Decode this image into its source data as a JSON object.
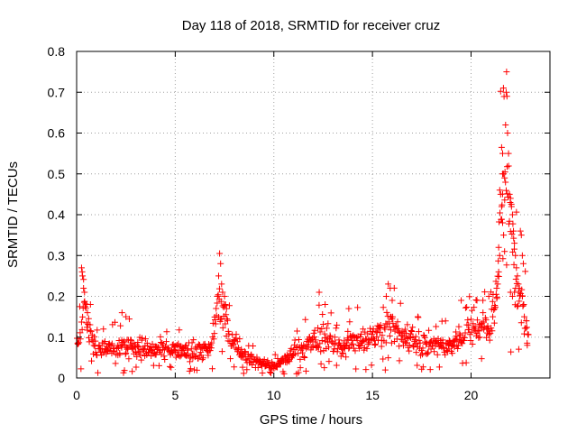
{
  "chart_data": {
    "type": "scatter",
    "title": "Day 118 of 2018, SRMTID for receiver cruz",
    "xlabel": "GPS time / hours",
    "ylabel": "SRMTID / TECUs",
    "xlim": [
      0,
      24
    ],
    "ylim": [
      0,
      0.8
    ],
    "xticks": [
      0,
      5,
      10,
      15,
      20
    ],
    "xtick_labels": [
      "0",
      "5",
      "10",
      "15",
      "20"
    ],
    "yticks": [
      0,
      0.1,
      0.2,
      0.3,
      0.4,
      0.5,
      0.6,
      0.7,
      0.8
    ],
    "ytick_labels": [
      "0",
      "0.1",
      "0.2",
      "0.3",
      "0.4",
      "0.5",
      "0.6",
      "0.7",
      "0.8"
    ],
    "grid": true,
    "marker": "plus",
    "series": [
      {
        "name": "SRMTID",
        "color": "#ff0000",
        "x_start": 0,
        "x_end": 22.9,
        "x_step": 0.025,
        "envelope": [
          [
            0,
            0.08
          ],
          [
            0.2,
            0.12
          ],
          [
            0.4,
            0.2
          ],
          [
            0.6,
            0.12
          ],
          [
            1,
            0.07
          ],
          [
            2,
            0.08
          ],
          [
            3,
            0.075
          ],
          [
            4,
            0.07
          ],
          [
            5,
            0.07
          ],
          [
            6,
            0.06
          ],
          [
            6.8,
            0.07
          ],
          [
            7.2,
            0.2
          ],
          [
            7.5,
            0.15
          ],
          [
            8,
            0.08
          ],
          [
            9,
            0.04
          ],
          [
            10,
            0.03
          ],
          [
            10.5,
            0.04
          ],
          [
            11,
            0.06
          ],
          [
            12,
            0.09
          ],
          [
            12.5,
            0.1
          ],
          [
            13,
            0.09
          ],
          [
            13.5,
            0.07
          ],
          [
            14,
            0.09
          ],
          [
            15,
            0.1
          ],
          [
            15.8,
            0.13
          ],
          [
            16.5,
            0.1
          ],
          [
            17,
            0.09
          ],
          [
            18,
            0.08
          ],
          [
            19,
            0.08
          ],
          [
            19.5,
            0.1
          ],
          [
            20,
            0.12
          ],
          [
            20.5,
            0.13
          ],
          [
            21,
            0.12
          ],
          [
            21.3,
            0.2
          ],
          [
            21.5,
            0.4
          ],
          [
            21.7,
            0.5
          ],
          [
            21.9,
            0.4
          ],
          [
            22.1,
            0.32
          ],
          [
            22.3,
            0.22
          ],
          [
            22.5,
            0.2
          ],
          [
            22.9,
            0.1
          ]
        ],
        "spread": 0.45,
        "highlights": [
          [
            0.25,
            0.27
          ],
          [
            0.28,
            0.26
          ],
          [
            0.3,
            0.25
          ],
          [
            0.35,
            0.22
          ],
          [
            0.4,
            0.21
          ],
          [
            0.5,
            0.18
          ],
          [
            0.55,
            0.16
          ],
          [
            0.7,
            0.18
          ],
          [
            2.3,
            0.16
          ],
          [
            2.5,
            0.15
          ],
          [
            7.25,
            0.305
          ],
          [
            7.3,
            0.28
          ],
          [
            7.2,
            0.25
          ],
          [
            7.35,
            0.23
          ],
          [
            7.4,
            0.21
          ],
          [
            7.15,
            0.2
          ],
          [
            7.5,
            0.2
          ],
          [
            7.6,
            0.17
          ],
          [
            12.3,
            0.21
          ],
          [
            12.6,
            0.18
          ],
          [
            13.8,
            0.17
          ],
          [
            15.8,
            0.23
          ],
          [
            15.9,
            0.22
          ],
          [
            15.7,
            0.2
          ],
          [
            16.0,
            0.19
          ],
          [
            17.3,
            0.15
          ],
          [
            19.5,
            0.19
          ],
          [
            20.3,
            0.19
          ],
          [
            20.6,
            0.19
          ],
          [
            20.9,
            0.2
          ],
          [
            21.55,
            0.565
          ],
          [
            21.6,
            0.55
          ],
          [
            21.6,
            0.5
          ],
          [
            21.65,
            0.5
          ],
          [
            21.7,
            0.49
          ],
          [
            21.75,
            0.62
          ],
          [
            21.78,
            0.7
          ],
          [
            21.8,
            0.75
          ],
          [
            21.82,
            0.69
          ],
          [
            21.85,
            0.6
          ],
          [
            21.9,
            0.55
          ],
          [
            21.5,
            0.45
          ],
          [
            21.55,
            0.42
          ],
          [
            21.6,
            0.38
          ],
          [
            21.65,
            0.35
          ],
          [
            21.7,
            0.31
          ],
          [
            21.95,
            0.45
          ],
          [
            22.0,
            0.44
          ],
          [
            22.05,
            0.42
          ],
          [
            22.1,
            0.4
          ],
          [
            22.15,
            0.36
          ],
          [
            22.2,
            0.33
          ],
          [
            22.25,
            0.3
          ],
          [
            22.3,
            0.27
          ],
          [
            22.35,
            0.25
          ],
          [
            22.45,
            0.22
          ],
          [
            22.5,
            0.36
          ],
          [
            22.55,
            0.35
          ],
          [
            22.6,
            0.3
          ],
          [
            22.65,
            0.28
          ],
          [
            21.45,
            0.3
          ],
          [
            21.4,
            0.26
          ],
          [
            21.35,
            0.23
          ],
          [
            21.3,
            0.22
          ],
          [
            21.4,
            0.32
          ],
          [
            22.0,
            0.21
          ],
          [
            22.1,
            0.2
          ],
          [
            22.2,
            0.21
          ],
          [
            22.4,
            0.23
          ],
          [
            22.6,
            0.2
          ],
          [
            21.2,
            0.17
          ],
          [
            21.1,
            0.15
          ],
          [
            22.7,
            0.15
          ],
          [
            22.8,
            0.14
          ],
          [
            22.85,
            0.08
          ]
        ]
      }
    ]
  },
  "colors": {
    "marker": "#ff0000",
    "axis": "#000000",
    "grid": "#a0a0a0",
    "background": "#ffffff"
  }
}
